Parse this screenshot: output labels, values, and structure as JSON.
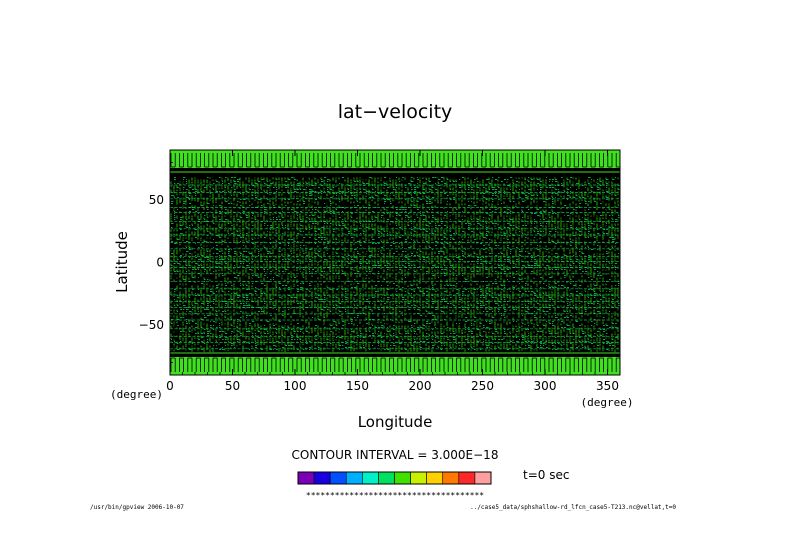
{
  "chart_data": {
    "type": "heatmap",
    "title": "lat−velocity",
    "xlabel": "Longitude",
    "ylabel": "Latitude",
    "x_unit": "(degree)",
    "y_unit": "(degree)",
    "xlim": [
      0,
      360
    ],
    "ylim": [
      -90,
      90
    ],
    "x_ticks": [
      "0",
      "50",
      "100",
      "150",
      "200",
      "250",
      "300",
      "350"
    ],
    "y_ticks": [
      "50",
      "0",
      "−50"
    ],
    "x_tick_values": [
      0,
      50,
      100,
      150,
      200,
      250,
      300,
      350
    ],
    "y_tick_values": [
      50,
      0,
      -50
    ],
    "contour_interval_label": "CONTOUR INTERVAL = 3.000E−18",
    "time_label": "t=0 sec",
    "colorbar_colors": [
      "#7a00b8",
      "#1a00e0",
      "#0050ff",
      "#00b0ff",
      "#00f0c8",
      "#00e060",
      "#40e000",
      "#c8f000",
      "#ffd000",
      "#ff7800",
      "#ff2828",
      "#ffa0a0"
    ],
    "colorbar_marks": "*************************************",
    "field_color": "#40e020",
    "field_colors": [
      "#40e020",
      "#00e060",
      "#2cd800"
    ],
    "band_color": "#000000"
  },
  "footer": {
    "left": "/usr/bin/gpview  2006-10-07",
    "right": "../case5_data/sphshallow-rd_lfcn_case5-T213.nc@vellat,t=0"
  }
}
